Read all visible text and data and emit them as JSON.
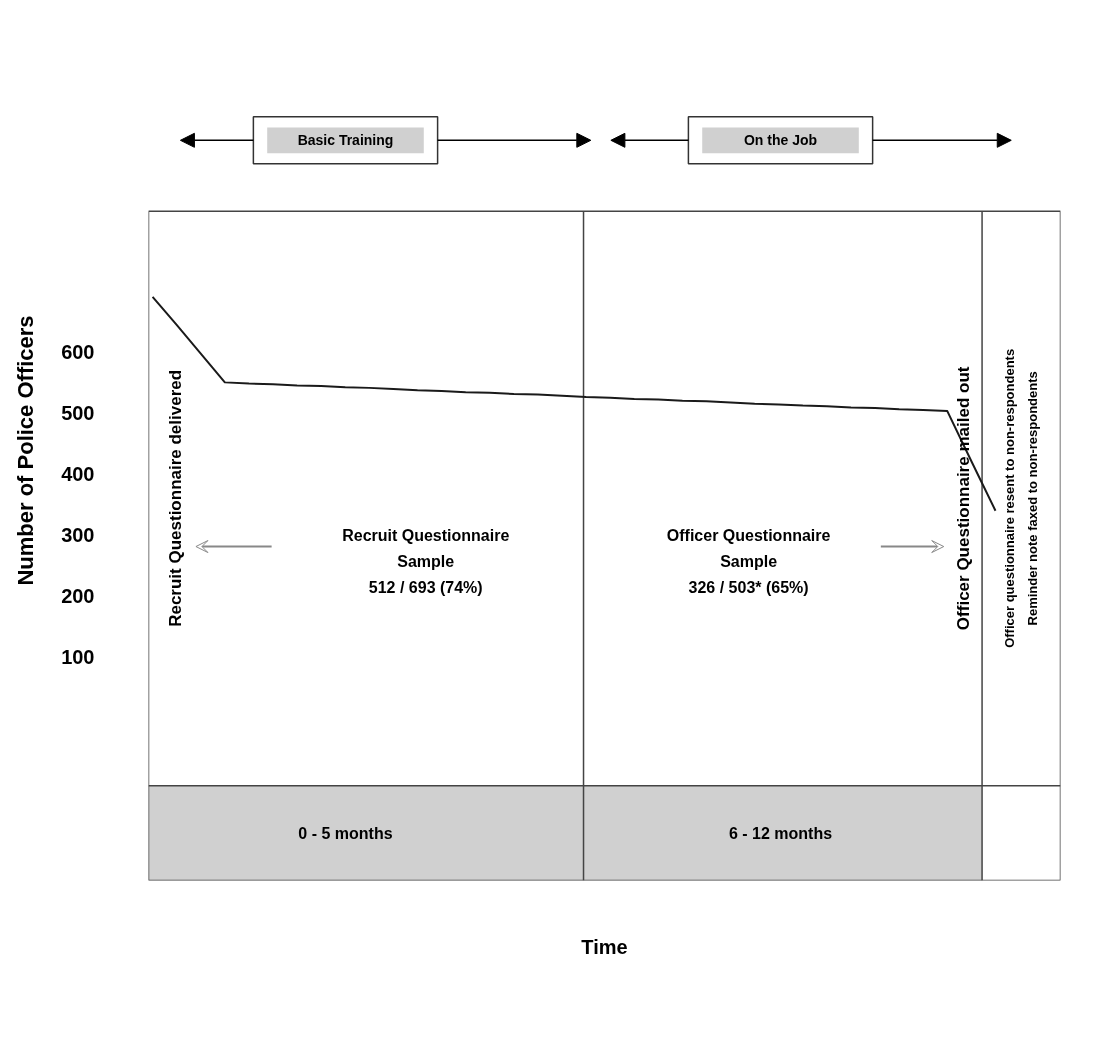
{
  "chart_data": {
    "type": "line",
    "xlabel": "Time",
    "ylabel": "Number of Police Officers",
    "categories": [
      null,
      null,
      null,
      null,
      null,
      null,
      null,
      null,
      null,
      null,
      null,
      null,
      null,
      null,
      null,
      null,
      null,
      null,
      null,
      null,
      null,
      null,
      null,
      null,
      null,
      null,
      null,
      null,
      null,
      null,
      null,
      null,
      null,
      null,
      null,
      null
    ],
    "series": [
      {
        "color": "#1a1a1a",
        "values": [
          690,
          644,
          597,
          550,
          548,
          547,
          545,
          544,
          542,
          541,
          539,
          537,
          536,
          534,
          533,
          531,
          530,
          528,
          526,
          525,
          523,
          522,
          520,
          519,
          517,
          515,
          514,
          512,
          511,
          509,
          508,
          506,
          505,
          503,
          421,
          340
        ]
      }
    ],
    "ylim": [
      -265,
      830
    ],
    "yticks": [
      100,
      200,
      300,
      400,
      500,
      600
    ],
    "bands": [
      {
        "axis": "y",
        "from": -265,
        "to": -110,
        "color": "#d0d0d0"
      }
    ],
    "annotations": [
      "Basic Training",
      "On the Job",
      "Recruit Questionnaire delivered",
      "Officer Questionnaire mailed out",
      "Recruit Questionnaire\nSample\n512 / 693 (74%)",
      "Officer Questionnaire\nSample\n326 / 503* (65%)",
      "Officer questionnaire resent to non-respondents\nReminder note faxed to non-respondents",
      "0 - 5 months",
      "6 - 12 months"
    ]
  }
}
